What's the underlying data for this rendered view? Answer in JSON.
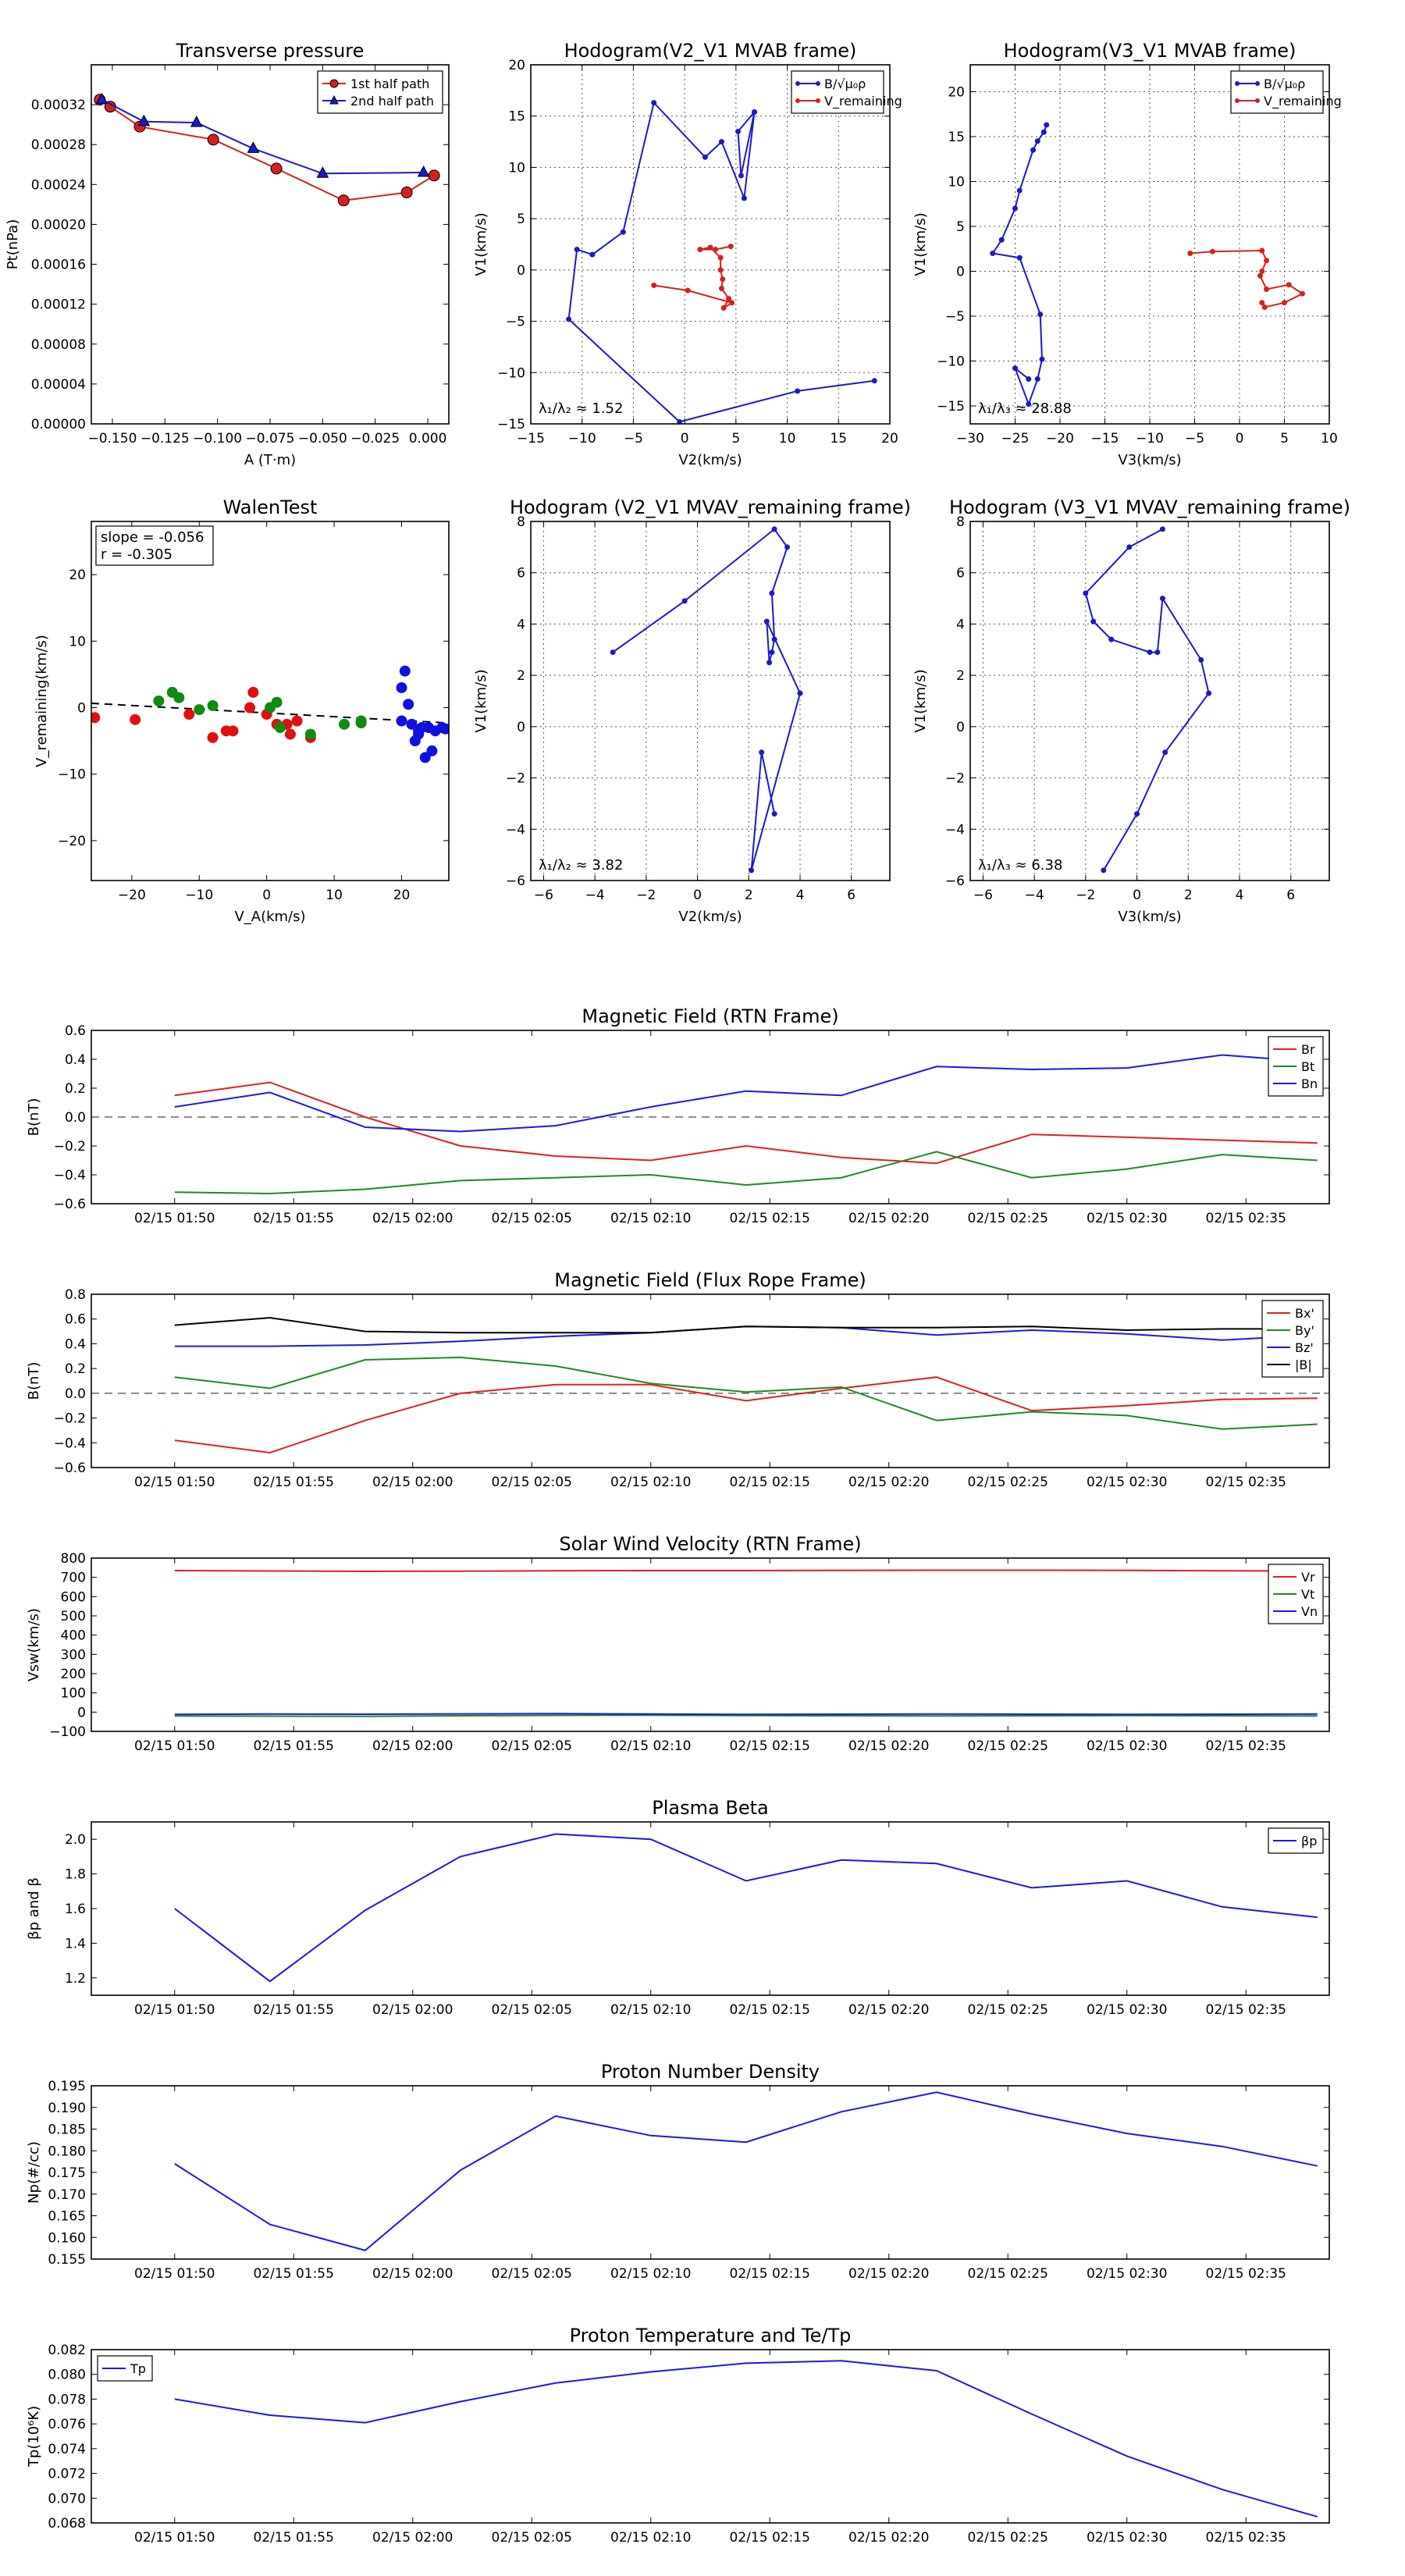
{
  "chart_data": [
    {
      "id": "p1",
      "type": "line",
      "title": "Transverse pressure",
      "xlabel": "A (T·m)",
      "ylabel": "Pt(nPa)",
      "xlim": [
        -0.16,
        0.01
      ],
      "ylim": [
        0.0,
        0.00036
      ],
      "xticks": [
        -0.15,
        -0.125,
        -0.1,
        -0.075,
        -0.05,
        -0.025,
        0.0
      ],
      "xticklabels": [
        "−0.150",
        "−0.125",
        "−0.100",
        "−0.075",
        "−0.050",
        "−0.025",
        "0.000"
      ],
      "yticks": [
        0,
        4e-05,
        8e-05,
        0.00012,
        0.00016,
        0.0002,
        0.00024,
        0.00028,
        0.00032
      ],
      "yticklabels": [
        "0.00000",
        "0.00004",
        "0.00008",
        "0.00012",
        "0.00016",
        "0.00020",
        "0.00024",
        "0.00028",
        "0.00032"
      ],
      "grid": false,
      "legend": "top-right",
      "series": [
        {
          "name": "1st half path",
          "color": "#d62020",
          "marker": "circle",
          "x": [
            0.003,
            -0.01,
            -0.04,
            -0.072,
            -0.102,
            -0.137,
            -0.151,
            -0.156
          ],
          "y": [
            0.000249,
            0.000232,
            0.000224,
            0.000256,
            0.000285,
            0.000298,
            0.000318,
            0.000325
          ]
        },
        {
          "name": "2nd half path",
          "color": "#1a1ac8",
          "marker": "triangle",
          "x": [
            -0.155,
            -0.135,
            -0.11,
            -0.083,
            -0.05,
            -0.002
          ],
          "y": [
            0.000325,
            0.000303,
            0.000302,
            0.000276,
            0.000251,
            0.000252
          ]
        }
      ]
    },
    {
      "id": "p2",
      "type": "line",
      "title": "Hodogram(V2_V1 MVAB frame)",
      "xlabel": "V2(km/s)",
      "ylabel": "V1(km/s)",
      "xlim": [
        -15,
        20
      ],
      "ylim": [
        -15,
        20
      ],
      "xticks": [
        -15,
        -10,
        -5,
        0,
        5,
        10,
        15,
        20
      ],
      "yticks": [
        -15,
        -10,
        -5,
        0,
        5,
        10,
        15,
        20
      ],
      "grid": true,
      "legend": "top-right",
      "legend_labels": [
        "B/√μ₀ρ",
        "V_remaining"
      ],
      "annotation": "λ₁/λ₂ ≈ 1.52",
      "series": [
        {
          "color": "#1a1ac8",
          "x": [
            6.8,
            5.5,
            5.2,
            6.8,
            5.8,
            3.6,
            2.0,
            -3.0,
            -6.0,
            -9.0,
            -10.5,
            -11.3,
            -0.5,
            11.0,
            18.5
          ],
          "y": [
            15.4,
            9.2,
            13.5,
            15.4,
            7.0,
            12.5,
            11.0,
            16.3,
            3.7,
            1.5,
            2.0,
            -4.8,
            -14.8,
            -11.8,
            -10.8
          ]
        },
        {
          "color": "#d62020",
          "x": [
            4.5,
            3.0,
            1.5,
            2.5,
            3.5,
            3.5,
            3.7,
            3.6,
            4.3,
            3.8,
            4.6,
            0.3,
            -3.0
          ],
          "y": [
            2.3,
            2.0,
            2.0,
            2.2,
            1.2,
            0.0,
            -0.9,
            -1.8,
            -2.8,
            -3.7,
            -3.2,
            -2.0,
            -1.5
          ]
        }
      ]
    },
    {
      "id": "p3",
      "type": "line",
      "title": "Hodogram(V3_V1 MVAB frame)",
      "xlabel": "V3(km/s)",
      "ylabel": "V1(km/s)",
      "xlim": [
        -30,
        10
      ],
      "ylim": [
        -17,
        23
      ],
      "xticks": [
        -30,
        -25,
        -20,
        -15,
        -10,
        -5,
        0,
        5,
        10
      ],
      "yticks": [
        -15,
        -10,
        -5,
        0,
        5,
        10,
        15,
        20
      ],
      "grid": true,
      "legend": "top-right",
      "legend_labels": [
        "B/√μ₀ρ",
        "V_remaining"
      ],
      "annotation": "λ₁/λ₃ ≈ 28.88",
      "series": [
        {
          "color": "#1a1ac8",
          "x": [
            -21.5,
            -21.8,
            -22.5,
            -23.0,
            -24.5,
            -25.0,
            -26.5,
            -27.5,
            -24.5,
            -22.2,
            -22.0,
            -22.5,
            -23.5,
            -25.0,
            -23.5
          ],
          "y": [
            16.3,
            15.5,
            14.5,
            13.5,
            9.0,
            7.0,
            3.5,
            2.0,
            1.5,
            -4.8,
            -9.8,
            -12.0,
            -14.8,
            -10.8,
            -12.0
          ]
        },
        {
          "color": "#d62020",
          "x": [
            -5.5,
            -3.0,
            2.5,
            3.0,
            2.5,
            2.3,
            3.0,
            5.5,
            7.0,
            5.0,
            2.8,
            2.5
          ],
          "y": [
            2.0,
            2.2,
            2.3,
            1.2,
            0.0,
            -0.5,
            -2.0,
            -1.5,
            -2.5,
            -3.5,
            -4.0,
            -3.5
          ]
        }
      ]
    },
    {
      "id": "p4",
      "type": "scatter",
      "title": "WalenTest",
      "xlabel": "V_A(km/s)",
      "ylabel": "V_remaining(km/s)",
      "xlim": [
        -26,
        27
      ],
      "ylim": [
        -26,
        28
      ],
      "xticks": [
        -20,
        -10,
        0,
        10,
        20
      ],
      "yticks": [
        -20,
        -10,
        0,
        10,
        20
      ],
      "grid": false,
      "annotation_lines": [
        "slope = -0.056",
        "r = -0.305"
      ],
      "fit_line": {
        "slope": -0.056,
        "intercept": -0.8
      },
      "series": [
        {
          "color": "#e01010",
          "x": [
            -25.5,
            -19.5,
            -11.5,
            -8.0,
            -6.0,
            -5.0,
            -2.5,
            -2.0,
            0.0,
            1.5,
            3.0,
            3.5,
            4.5,
            6.5
          ],
          "y": [
            -1.5,
            -1.8,
            -1.0,
            -4.5,
            -3.5,
            -3.5,
            0.0,
            2.3,
            -1.0,
            -2.5,
            -2.5,
            -4.0,
            -2.0,
            -4.5
          ]
        },
        {
          "color": "#108a10",
          "x": [
            -16.0,
            -14.0,
            -13.0,
            -10.0,
            -8.0,
            0.5,
            1.5,
            2.0,
            6.5,
            11.5,
            14.0,
            14.0
          ],
          "y": [
            1.0,
            2.3,
            1.5,
            -0.3,
            0.3,
            0.0,
            0.8,
            -3.0,
            -4.0,
            -2.5,
            -2.0,
            -2.3
          ]
        },
        {
          "color": "#1010e0",
          "x": [
            20.0,
            20.5,
            21.0,
            21.5,
            22.0,
            22.5,
            23.0,
            23.5,
            24.0,
            24.5,
            25.0,
            26.0,
            26.5,
            20.0,
            22.5
          ],
          "y": [
            3.0,
            5.5,
            0.5,
            -2.5,
            -5.0,
            -3.5,
            -3.0,
            -7.5,
            -3.0,
            -6.5,
            -3.5,
            -3.0,
            -3.2,
            -2.0,
            -4.0
          ]
        }
      ]
    },
    {
      "id": "p5",
      "type": "line",
      "title": "Hodogram (V2_V1 MVAV_remaining frame)",
      "xlabel": "V2(km/s)",
      "ylabel": "V1(km/s)",
      "xlim": [
        -6.5,
        7.5
      ],
      "ylim": [
        -6,
        8
      ],
      "xticks": [
        -6,
        -4,
        -2,
        0,
        2,
        4,
        6
      ],
      "yticks": [
        -6,
        -4,
        -2,
        0,
        2,
        4,
        6,
        8
      ],
      "grid": true,
      "annotation": "λ₁/λ₂ ≈ 3.82",
      "series": [
        {
          "color": "#1a1ac8",
          "x": [
            -3.3,
            -0.5,
            3.0,
            3.5,
            2.9,
            3.0,
            2.9,
            2.8,
            2.7,
            4.0,
            2.1,
            2.5,
            3.0
          ],
          "y": [
            2.9,
            4.9,
            7.7,
            7.0,
            5.2,
            3.4,
            2.9,
            2.5,
            4.1,
            1.3,
            -5.6,
            -1.0,
            -3.4
          ]
        }
      ]
    },
    {
      "id": "p6",
      "type": "line",
      "title": "Hodogram (V3_V1 MVAV_remaining frame)",
      "xlabel": "V3(km/s)",
      "ylabel": "V1(km/s)",
      "xlim": [
        -6.5,
        7.5
      ],
      "ylim": [
        -6,
        8
      ],
      "xticks": [
        -6,
        -4,
        -2,
        0,
        2,
        4,
        6
      ],
      "yticks": [
        -6,
        -4,
        -2,
        0,
        2,
        4,
        6,
        8
      ],
      "grid": true,
      "annotation": "λ₁/λ₃ ≈ 6.38",
      "series": [
        {
          "color": "#1a1ac8",
          "x": [
            1.0,
            -0.3,
            -2.0,
            -1.7,
            -1.0,
            0.5,
            0.8,
            1.0,
            2.5,
            2.8,
            1.1,
            0.0,
            -1.3
          ],
          "y": [
            7.7,
            7.0,
            5.2,
            4.1,
            3.4,
            2.9,
            2.9,
            5.0,
            2.6,
            1.3,
            -1.0,
            -3.4,
            -5.6
          ]
        }
      ]
    },
    {
      "id": "p7",
      "type": "line",
      "title": "Magnetic Field (RTN Frame)",
      "ylabel": "B(nT)",
      "ylim": [
        -0.6,
        0.6
      ],
      "yticks": [
        -0.6,
        -0.4,
        -0.2,
        0.0,
        0.2,
        0.4,
        0.6
      ],
      "yticklabels": [
        "−0.6",
        "−0.4",
        "−0.2",
        "0.0",
        "0.2",
        "0.4",
        "0.6"
      ],
      "zero_line": true,
      "legend": "top-right",
      "series": [
        {
          "name": "Br",
          "color": "#e02020",
          "values": [
            0.15,
            0.24,
            0.0,
            -0.2,
            -0.27,
            -0.3,
            -0.2,
            -0.28,
            -0.32,
            -0.12,
            -0.14,
            -0.16,
            -0.18
          ]
        },
        {
          "name": "Bt",
          "color": "#208a20",
          "values": [
            -0.52,
            -0.53,
            -0.5,
            -0.44,
            -0.42,
            -0.4,
            -0.47,
            -0.42,
            -0.24,
            -0.42,
            -0.36,
            -0.26,
            -0.3
          ]
        },
        {
          "name": "Bn",
          "color": "#1a1ae0",
          "values": [
            0.07,
            0.17,
            -0.07,
            -0.1,
            -0.06,
            0.07,
            0.18,
            0.15,
            0.35,
            0.33,
            0.34,
            0.43,
            0.38
          ]
        }
      ]
    },
    {
      "id": "p8",
      "type": "line",
      "title": "Magnetic Field (Flux Rope Frame)",
      "ylabel": "B(nT)",
      "ylim": [
        -0.6,
        0.8
      ],
      "yticks": [
        -0.6,
        -0.4,
        -0.2,
        0.0,
        0.2,
        0.4,
        0.6,
        0.8
      ],
      "yticklabels": [
        "−0.6",
        "−0.4",
        "−0.2",
        "0.0",
        "0.2",
        "0.4",
        "0.6",
        "0.8"
      ],
      "zero_line": true,
      "legend": "top-right",
      "series": [
        {
          "name": "Bx'",
          "color": "#e02020",
          "values": [
            -0.38,
            -0.48,
            -0.22,
            0.0,
            0.07,
            0.07,
            -0.06,
            0.04,
            0.13,
            -0.14,
            -0.1,
            -0.05,
            -0.04
          ]
        },
        {
          "name": "By'",
          "color": "#208a20",
          "values": [
            0.13,
            0.04,
            0.27,
            0.29,
            0.22,
            0.08,
            0.01,
            0.05,
            -0.22,
            -0.15,
            -0.18,
            -0.29,
            -0.25
          ]
        },
        {
          "name": "Bz'",
          "color": "#1a1ae0",
          "values": [
            0.38,
            0.38,
            0.39,
            0.42,
            0.46,
            0.49,
            0.54,
            0.53,
            0.47,
            0.51,
            0.48,
            0.43,
            0.47
          ]
        },
        {
          "name": "|B|",
          "color": "#000000",
          "values": [
            0.55,
            0.61,
            0.5,
            0.49,
            0.49,
            0.49,
            0.54,
            0.53,
            0.53,
            0.54,
            0.51,
            0.52,
            0.52
          ]
        }
      ]
    },
    {
      "id": "p9",
      "type": "line",
      "title": "Solar Wind Velocity (RTN Frame)",
      "ylabel": "Vsw(km/s)",
      "ylim": [
        -100,
        800
      ],
      "yticks": [
        -100,
        0,
        100,
        200,
        300,
        400,
        500,
        600,
        700,
        800
      ],
      "yticklabels": [
        "−100",
        "0",
        "100",
        "200",
        "300",
        "400",
        "500",
        "600",
        "700",
        "800"
      ],
      "legend": "top-right",
      "series": [
        {
          "name": "Vr",
          "color": "#e02020",
          "values": [
            735,
            733,
            731,
            732,
            734,
            735,
            735,
            736,
            737,
            737,
            736,
            734,
            733
          ]
        },
        {
          "name": "Vt",
          "color": "#208a20",
          "values": [
            -20,
            -21,
            -22,
            -19,
            -17,
            -16,
            -18,
            -19,
            -20,
            -19,
            -18,
            -19,
            -20
          ]
        },
        {
          "name": "Vn",
          "color": "#1a1ae0",
          "values": [
            -12,
            -10,
            -11,
            -9,
            -8,
            -10,
            -12,
            -11,
            -10,
            -11,
            -12,
            -11,
            -10
          ]
        }
      ]
    },
    {
      "id": "p10",
      "type": "line",
      "title": "Plasma Beta",
      "ylabel": "βp and β",
      "ylim": [
        1.1,
        2.1
      ],
      "yticks": [
        1.2,
        1.4,
        1.6,
        1.8,
        2.0
      ],
      "yticklabels": [
        "1.2",
        "1.4",
        "1.6",
        "1.8",
        "2.0"
      ],
      "legend": "top-right",
      "series": [
        {
          "name": "βp",
          "color": "#1a1ae0",
          "values": [
            1.6,
            1.18,
            1.59,
            1.9,
            2.03,
            2.0,
            1.76,
            1.88,
            1.86,
            1.72,
            1.76,
            1.61,
            1.55
          ]
        }
      ]
    },
    {
      "id": "p11",
      "type": "line",
      "title": "Proton Number Density",
      "ylabel": "Np(#/cc)",
      "ylim": [
        0.155,
        0.195
      ],
      "yticks": [
        0.155,
        0.16,
        0.165,
        0.17,
        0.175,
        0.18,
        0.185,
        0.19,
        0.195
      ],
      "yticklabels": [
        "0.155",
        "0.160",
        "0.165",
        "0.170",
        "0.175",
        "0.180",
        "0.185",
        "0.190",
        "0.195"
      ],
      "legend": "none",
      "series": [
        {
          "name": "Np",
          "color": "#1a1ae0",
          "values": [
            0.177,
            0.163,
            0.157,
            0.1755,
            0.188,
            0.1835,
            0.182,
            0.189,
            0.1935,
            0.1885,
            0.184,
            0.181,
            0.1765
          ]
        }
      ]
    },
    {
      "id": "p12",
      "type": "line",
      "title": "Proton Temperature and Te/Tp",
      "ylabel": "Tp(10⁶K)",
      "ylim": [
        0.068,
        0.082
      ],
      "yticks": [
        0.068,
        0.07,
        0.072,
        0.074,
        0.076,
        0.078,
        0.08,
        0.082
      ],
      "yticklabels": [
        "0.068",
        "0.070",
        "0.072",
        "0.074",
        "0.076",
        "0.078",
        "0.080",
        "0.082"
      ],
      "legend": "top-left",
      "series": [
        {
          "name": "Tp",
          "color": "#1a1ae0",
          "values": [
            0.078,
            0.0767,
            0.0761,
            0.0778,
            0.0793,
            0.0802,
            0.0809,
            0.0811,
            0.0803,
            0.0768,
            0.0734,
            0.0707,
            0.0685
          ]
        }
      ]
    }
  ],
  "timeseries_axis": {
    "x_minutes": [
      0,
      4,
      8,
      12,
      16,
      20,
      24,
      28,
      32,
      36,
      40,
      44,
      48
    ],
    "xlim_minutes": [
      -3.5,
      48.5
    ],
    "tick_minutes": [
      0,
      5,
      10,
      15,
      20,
      25,
      30,
      35,
      40,
      45
    ],
    "tick_labels": [
      "02/15 01:50",
      "02/15 01:55",
      "02/15 02:00",
      "02/15 02:05",
      "02/15 02:10",
      "02/15 02:15",
      "02/15 02:20",
      "02/15 02:25",
      "02/15 02:30",
      "02/15 02:35"
    ]
  }
}
